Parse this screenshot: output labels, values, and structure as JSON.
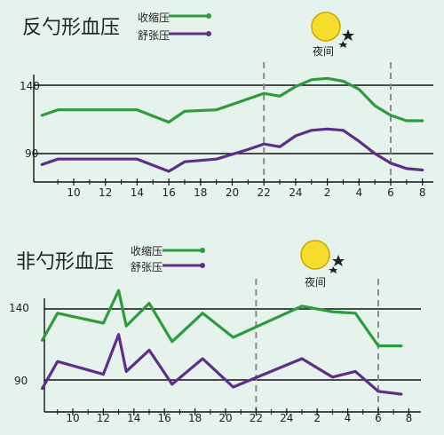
{
  "colors": {
    "background": "#e6f2ec",
    "systolic": "#2e9b3e",
    "diastolic": "#5d2f8b",
    "axis": "#111111",
    "dash": "#8a8a8a",
    "moon": "#f7dd2b"
  },
  "icons": {
    "moon": "moon-star-icon"
  },
  "chart_data": [
    {
      "type": "line",
      "title": "反勺形血压",
      "legend": [
        "收缩压",
        "舒张压"
      ],
      "night_label": "夜间",
      "x_ticks": [
        "10",
        "12",
        "14",
        "16",
        "18",
        "20",
        "22",
        "24",
        "2",
        "4",
        "6",
        "8"
      ],
      "x_hours": [
        8,
        9,
        10,
        12,
        14,
        16,
        17,
        19,
        21,
        22,
        23,
        24,
        25,
        26,
        27,
        28,
        29,
        30,
        31,
        32
      ],
      "xlim": [
        8,
        32
      ],
      "y_ticks": [
        140,
        90
      ],
      "night_markers_hours": [
        22,
        30
      ],
      "series": [
        {
          "name": "收缩压",
          "color": "#2e9b3e",
          "values": [
            118,
            122,
            122,
            122,
            122,
            113,
            121,
            122,
            130,
            134,
            132,
            139,
            144,
            145,
            143,
            137,
            125,
            118,
            114,
            114
          ]
        },
        {
          "name": "舒张压",
          "color": "#5d2f8b",
          "values": [
            82,
            86,
            86,
            86,
            86,
            77,
            84,
            86,
            93,
            97,
            95,
            103,
            107,
            108,
            107,
            99,
            90,
            83,
            79,
            78
          ]
        }
      ]
    },
    {
      "type": "line",
      "title": "非勺形血压",
      "legend": [
        "收缩压",
        "舒张压"
      ],
      "night_label": "夜间",
      "x_ticks": [
        "10",
        "12",
        "14",
        "16",
        "18",
        "20",
        "22",
        "24",
        "2",
        "4",
        "6",
        "8"
      ],
      "x_hours": [
        8,
        9,
        12,
        13,
        13.5,
        15,
        16.5,
        18.5,
        20.5,
        25,
        27,
        28.5,
        30,
        31.5
      ],
      "xlim": [
        8,
        32
      ],
      "y_ticks": [
        140,
        90
      ],
      "night_markers_hours": [
        22,
        30
      ],
      "series": [
        {
          "name": "收缩压",
          "color": "#2e9b3e",
          "values": [
            118,
            137,
            130,
            153,
            128,
            144,
            117,
            137,
            120,
            142,
            138,
            137,
            114,
            114
          ]
        },
        {
          "name": "舒张压",
          "color": "#5d2f8b",
          "values": [
            84,
            103,
            94,
            122,
            96,
            111,
            87,
            105,
            85,
            105,
            92,
            96,
            82,
            80
          ]
        }
      ]
    }
  ]
}
